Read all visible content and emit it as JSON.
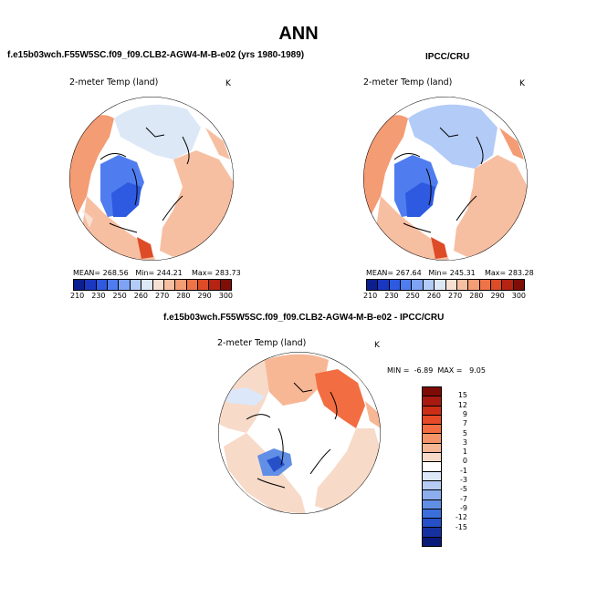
{
  "title": "ANN",
  "chart_data": [
    {
      "type": "heatmap",
      "projection": "north polar stereographic",
      "case_label": "f.e15b03wch.F55W5SC.f09_f09.CLB2-AGW4-M-B-e02 (yrs 1980-1989)",
      "plot_title": "2-meter Temp (land)",
      "units": "K",
      "stats": {
        "mean_label": "MEAN=",
        "mean": "268.56",
        "min_label": "Min=",
        "min": "244.21",
        "max_label": "Max=",
        "max": "283.73"
      },
      "colorbar": {
        "colors": [
          "#0b1f8f",
          "#1a37c2",
          "#2d5ae0",
          "#4f7df0",
          "#7ea3f5",
          "#b3cbf7",
          "#dde8f7",
          "#f7e0d2",
          "#f7bfa2",
          "#f49c74",
          "#ee7447",
          "#dd4b27",
          "#b52313",
          "#7e0e07"
        ],
        "ticks": [
          "210",
          "230",
          "250",
          "260",
          "270",
          "280",
          "290",
          "300"
        ]
      }
    },
    {
      "type": "heatmap",
      "projection": "north polar stereographic",
      "case_label": "IPCC/CRU",
      "plot_title": "2-meter Temp (land)",
      "units": "K",
      "stats": {
        "mean_label": "MEAN=",
        "mean": "267.64",
        "min_label": "Min=",
        "min": "245.31",
        "max_label": "Max=",
        "max": "283.28"
      },
      "colorbar": {
        "colors": [
          "#0b1f8f",
          "#1a37c2",
          "#2d5ae0",
          "#4f7df0",
          "#7ea3f5",
          "#b3cbf7",
          "#dde8f7",
          "#f7e0d2",
          "#f7bfa2",
          "#f49c74",
          "#ee7447",
          "#dd4b27",
          "#b52313",
          "#7e0e07"
        ],
        "ticks": [
          "210",
          "230",
          "250",
          "260",
          "270",
          "280",
          "290",
          "300"
        ]
      }
    },
    {
      "type": "heatmap",
      "projection": "north polar stereographic",
      "case_label": "f.e15b03wch.F55W5SC.f09_f09.CLB2-AGW4-M-B-e02 - IPCC/CRU",
      "plot_title": "2-meter Temp (land)",
      "units": "K",
      "stats": {
        "min_label": "MIN =",
        "min": "-6.89",
        "max_label": "MAX =",
        "max": "9.05"
      },
      "colorbar": {
        "orientation": "vertical",
        "colors": [
          "#7e0a06",
          "#a81a10",
          "#cc2d17",
          "#e64a26",
          "#f26d41",
          "#f59468",
          "#f7b795",
          "#f7dac8",
          "#ffffff",
          "#dce7f9",
          "#b6ccf5",
          "#8caeef",
          "#628fe6",
          "#3a6fdb",
          "#2650c8",
          "#16309f",
          "#0a1a78"
        ],
        "ticks": [
          "15",
          "12",
          "9",
          "7",
          "5",
          "3",
          "1",
          "0",
          "-1",
          "-3",
          "-5",
          "-7",
          "-9",
          "-12",
          "-15"
        ]
      }
    }
  ]
}
